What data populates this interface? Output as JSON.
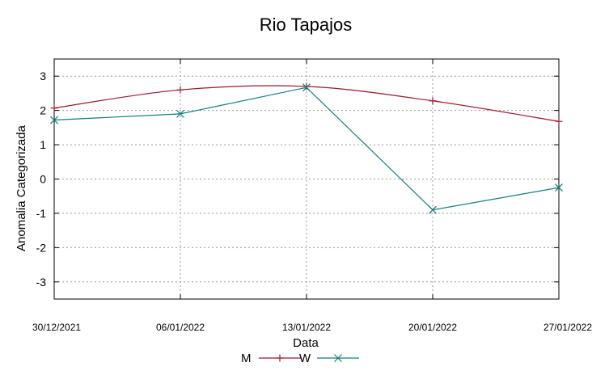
{
  "chart_data": {
    "type": "line",
    "title": "Rio Tapajos",
    "xlabel": "Data",
    "ylabel": "Anomalia Categorizada",
    "categories": [
      "30/12/2021",
      "06/01/2022",
      "13/01/2022",
      "20/01/2022",
      "27/01/2022"
    ],
    "yticks": [
      3,
      2,
      1,
      0,
      -1,
      -2,
      -3
    ],
    "ylim": [
      -3.5,
      3.5
    ],
    "grid": true,
    "legend_position": "bottom",
    "series": [
      {
        "name": "M",
        "color": "#a0162a",
        "marker": "plus",
        "values": [
          2.07,
          2.6,
          2.7,
          2.28,
          1.68
        ]
      },
      {
        "name": "W",
        "color": "#107e7d",
        "marker": "cross",
        "values": [
          1.72,
          1.9,
          2.67,
          -0.9,
          -0.25
        ]
      }
    ]
  }
}
